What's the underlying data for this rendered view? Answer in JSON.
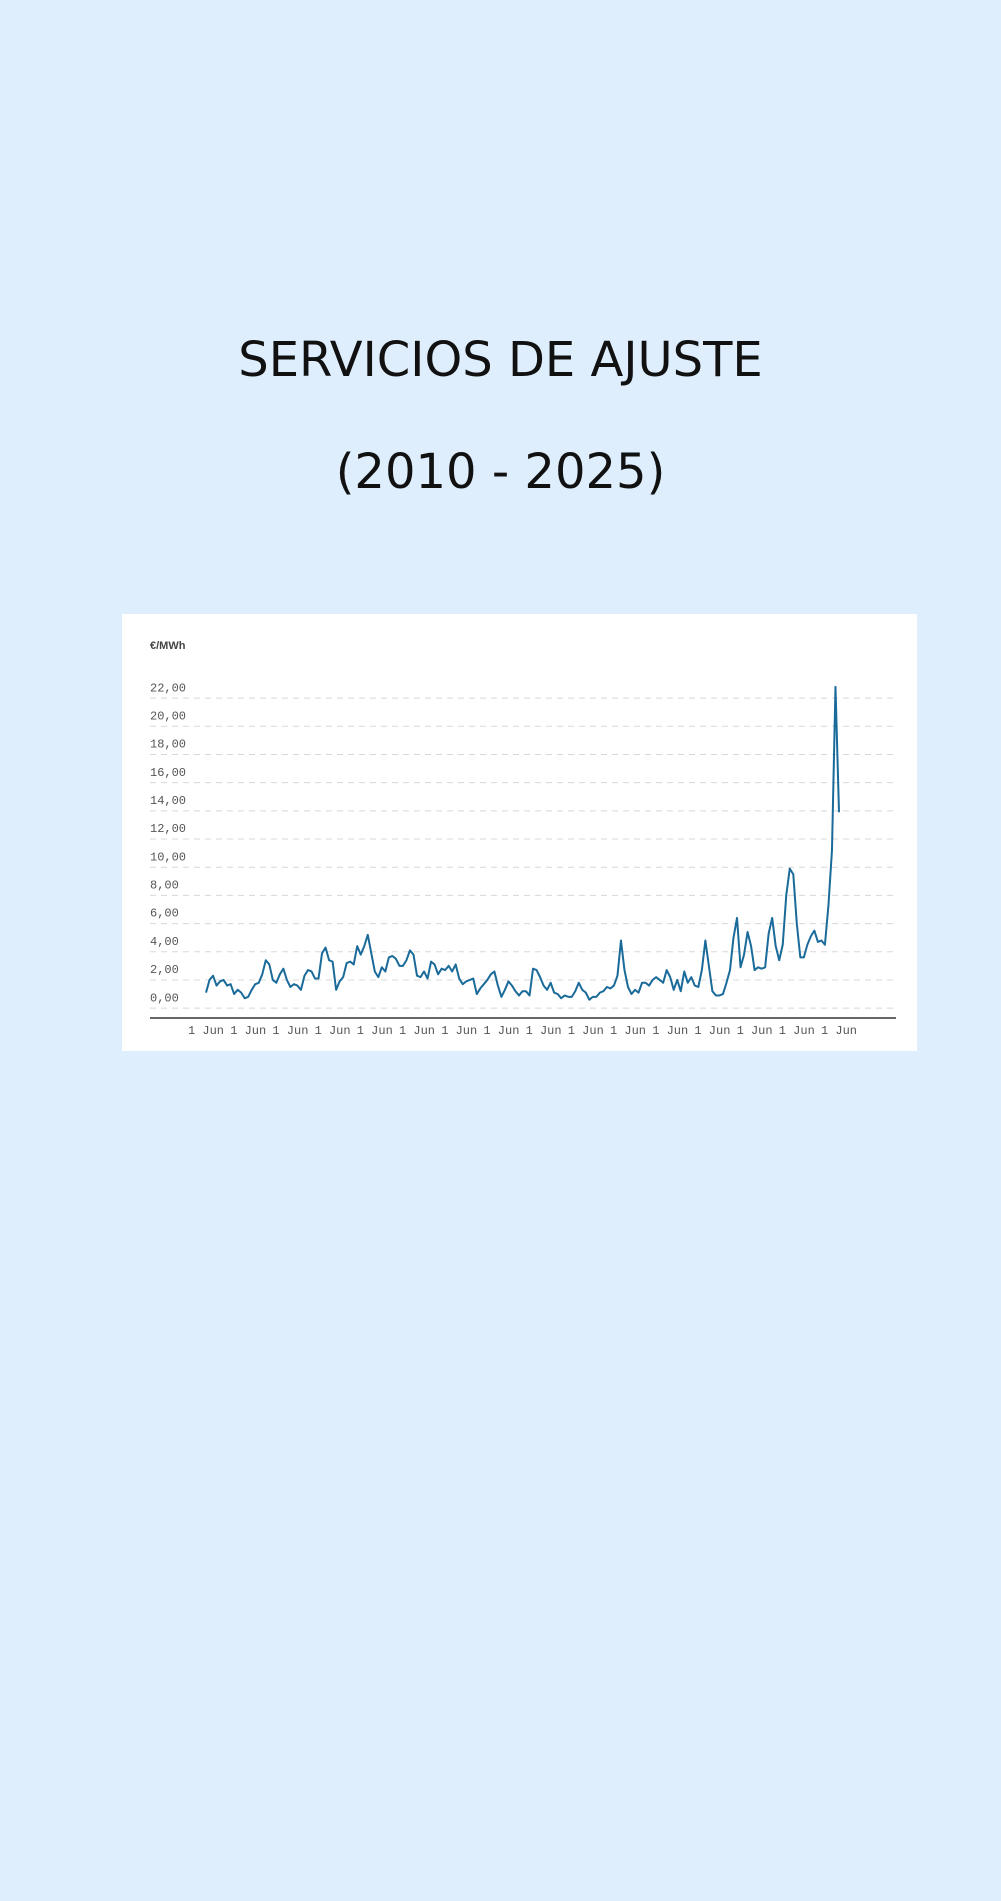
{
  "header": {
    "title": "SERVICIOS DE AJUSTE",
    "subtitle": "(2010 - 2025)"
  },
  "chart_data": {
    "type": "line",
    "y_label": "€/MWh",
    "color": "#1a6a9a",
    "grid": true,
    "ylim": [
      -0.7,
      23
    ],
    "yticks": [
      {
        "value": 0,
        "label": "0,00"
      },
      {
        "value": 2,
        "label": "2,00"
      },
      {
        "value": 4,
        "label": "4,00"
      },
      {
        "value": 6,
        "label": "6,00"
      },
      {
        "value": 8,
        "label": "8,00"
      },
      {
        "value": 10,
        "label": "10,00"
      },
      {
        "value": 12,
        "label": "12,00"
      },
      {
        "value": 14,
        "label": "14,00"
      },
      {
        "value": 16,
        "label": "16,00"
      },
      {
        "value": 18,
        "label": "18,00"
      },
      {
        "value": 20,
        "label": "20,00"
      },
      {
        "value": 22,
        "label": "22,00"
      }
    ],
    "categories": [
      "1 Jun",
      null,
      null,
      null,
      null,
      null,
      null,
      null,
      null,
      null,
      null,
      null,
      "1 Jun",
      null,
      null,
      null,
      null,
      null,
      null,
      null,
      null,
      null,
      null,
      null,
      "1 Jun",
      null,
      null,
      null,
      null,
      null,
      null,
      null,
      null,
      null,
      null,
      null,
      "1 Jun",
      null,
      null,
      null,
      null,
      null,
      null,
      null,
      null,
      null,
      null,
      null,
      "1 Jun",
      null,
      null,
      null,
      null,
      null,
      null,
      null,
      null,
      null,
      null,
      null,
      "1 Jun",
      null,
      null,
      null,
      null,
      null,
      null,
      null,
      null,
      null,
      null,
      null,
      "1 Jun",
      null,
      null,
      null,
      null,
      null,
      null,
      null,
      null,
      null,
      null,
      null,
      "1 Jun",
      null,
      null,
      null,
      null,
      null,
      null,
      null,
      null,
      null,
      null,
      null,
      "1 Jun",
      null,
      null,
      null,
      null,
      null,
      null,
      null,
      null,
      null,
      null,
      null,
      "1 Jun",
      null,
      null,
      null,
      null,
      null,
      null,
      null,
      null,
      null,
      null,
      null,
      "1 Jun",
      null,
      null,
      null,
      null,
      null,
      null,
      null,
      null,
      null,
      null,
      null,
      "1 Jun",
      null,
      null,
      null,
      null,
      null,
      null,
      null,
      null,
      null,
      null,
      null,
      "1 Jun",
      null,
      null,
      null,
      null,
      null,
      null,
      null,
      null,
      null,
      null,
      null,
      "1 Jun",
      null,
      null,
      null,
      null,
      null,
      null,
      null,
      null,
      null,
      null,
      null,
      "1 Jun",
      null,
      null,
      null,
      null,
      null,
      null,
      null,
      null,
      null,
      null,
      null,
      "1 Jun"
    ],
    "values": [
      1.1,
      2.0,
      2.3,
      1.6,
      1.9,
      2.0,
      1.6,
      1.7,
      1.0,
      1.3,
      1.1,
      0.7,
      0.8,
      1.3,
      1.7,
      1.8,
      2.4,
      3.4,
      3.1,
      2.0,
      1.8,
      2.4,
      2.8,
      2.0,
      1.5,
      1.7,
      1.6,
      1.3,
      2.3,
      2.7,
      2.6,
      2.1,
      2.1,
      3.9,
      4.3,
      3.4,
      3.3,
      1.3,
      1.9,
      2.2,
      3.2,
      3.3,
      3.1,
      4.4,
      3.8,
      4.4,
      5.2,
      3.9,
      2.6,
      2.2,
      2.9,
      2.6,
      3.6,
      3.7,
      3.5,
      3.0,
      3.0,
      3.4,
      4.1,
      3.8,
      2.3,
      2.2,
      2.6,
      2.1,
      3.3,
      3.1,
      2.4,
      2.8,
      2.7,
      3.0,
      2.6,
      3.1,
      2.1,
      1.7,
      1.9,
      2.0,
      2.1,
      1.0,
      1.4,
      1.7,
      2.0,
      2.4,
      2.6,
      1.6,
      0.8,
      1.3,
      1.9,
      1.6,
      1.2,
      0.9,
      1.2,
      1.2,
      0.9,
      2.8,
      2.7,
      2.2,
      1.6,
      1.3,
      1.8,
      1.1,
      1.0,
      0.7,
      0.9,
      0.8,
      0.8,
      1.2,
      1.8,
      1.3,
      1.1,
      0.6,
      0.8,
      0.8,
      1.1,
      1.2,
      1.5,
      1.4,
      1.6,
      2.3,
      4.8,
      2.7,
      1.5,
      1.0,
      1.3,
      1.1,
      1.8,
      1.8,
      1.6,
      2.0,
      2.2,
      2.0,
      1.8,
      2.7,
      2.2,
      1.3,
      2.0,
      1.2,
      2.6,
      1.8,
      2.2,
      1.6,
      1.5,
      2.7,
      4.8,
      3.0,
      1.2,
      0.9,
      0.9,
      1.0,
      1.8,
      2.7,
      5.0,
      6.4,
      2.9,
      3.8,
      5.4,
      4.4,
      2.7,
      2.9,
      2.8,
      2.9,
      5.3,
      6.4,
      4.4,
      3.4,
      4.5,
      8.0,
      9.9,
      9.5,
      6.0,
      3.6,
      3.6,
      4.5,
      5.1,
      5.5,
      4.7,
      4.8,
      4.5,
      7.3,
      11.2,
      22.8,
      13.9
    ]
  }
}
